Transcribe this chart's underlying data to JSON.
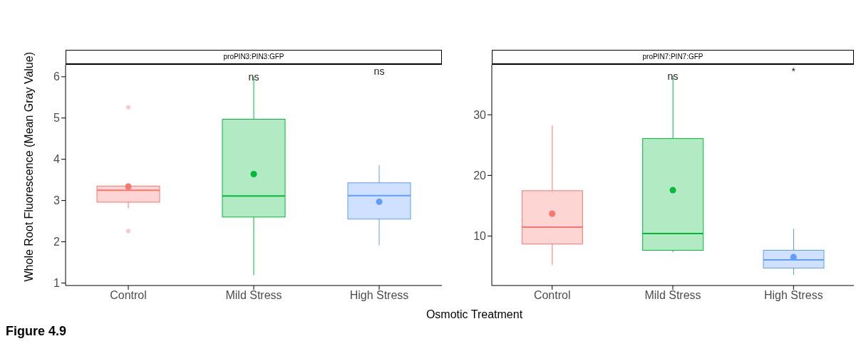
{
  "chart_data": [
    {
      "type": "box",
      "title": "proPIN3:PIN3:GFP",
      "ylabel": "Whole Root Fluorescence (Mean Gray Value)",
      "xlabel": "Osmotic Treatment",
      "categories": [
        "Control",
        "Mild Stress",
        "High Stress"
      ],
      "colors": [
        "#f8766d",
        "#00ba38",
        "#619cff"
      ],
      "boxes": [
        {
          "low": 2.81,
          "q1": 2.96,
          "median": 3.25,
          "q3": 3.35,
          "high": 3.35,
          "mean": 3.34,
          "outliers": [
            5.26,
            2.26
          ]
        },
        {
          "low": 1.19,
          "q1": 2.6,
          "median": 3.11,
          "q3": 4.97,
          "high": 6.0,
          "mean": 3.64
        },
        {
          "low": 1.91,
          "q1": 2.55,
          "median": 3.12,
          "q3": 3.43,
          "high": 3.86,
          "mean": 2.97
        }
      ],
      "ylim": [
        0.94,
        6.29
      ],
      "yticks": [
        1,
        2,
        3,
        4,
        5,
        6
      ],
      "annotations": [
        {
          "text": "ns",
          "x": "Mild Stress",
          "y": 6.0
        },
        "ns",
        "Figure 4.9"
      ]
    },
    {
      "type": "box",
      "title": "proPIN7:PIN7:GFP",
      "categories": [
        "Control",
        "Mild Stress",
        "High Stress"
      ],
      "colors": [
        "#f8766d",
        "#00ba38",
        "#619cff"
      ],
      "boxes": [
        {
          "low": 5.27,
          "q1": 8.69,
          "median": 11.49,
          "q3": 17.48,
          "high": 28.24,
          "mean": 13.69
        },
        {
          "low": 7.35,
          "q1": 7.66,
          "median": 10.41,
          "q3": 26.08,
          "high": 36.4,
          "mean": 17.57
        },
        {
          "low": 3.56,
          "q1": 4.73,
          "median": 6.08,
          "q3": 7.66,
          "high": 11.2,
          "mean": 6.53
        }
      ],
      "ylim": [
        1.85,
        38.24
      ],
      "yticks": [
        10,
        20,
        30
      ],
      "annotations": [
        {
          "text": "ns",
          "x": "Mild Stress",
          "y": 36.4
        },
        "*"
      ]
    }
  ]
}
